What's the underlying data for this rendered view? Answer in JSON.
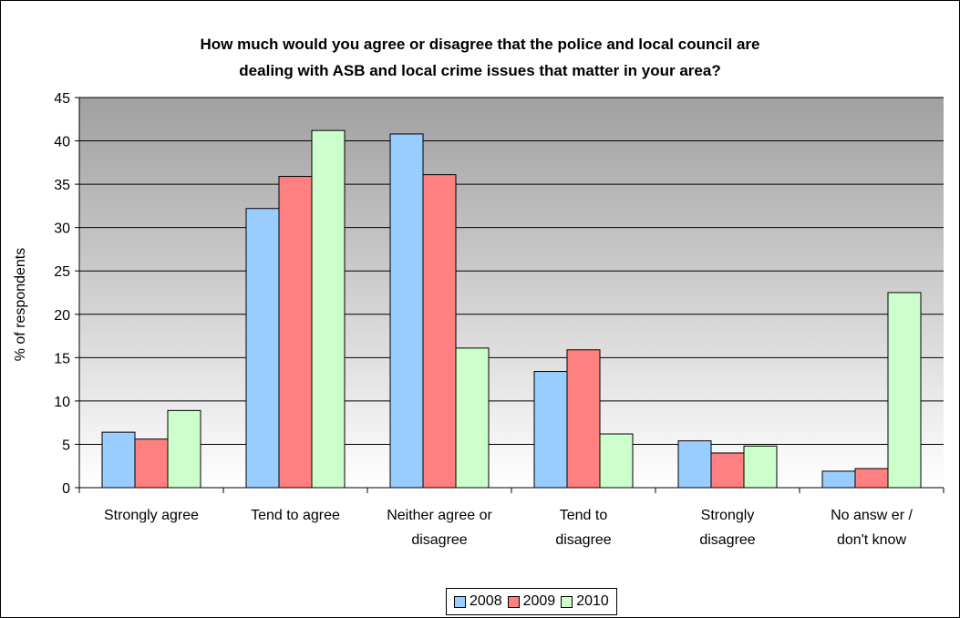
{
  "chart_data": {
    "type": "bar",
    "title_line1": "How much would you agree or disagree that the police and local council are",
    "title_line2": "dealing with ASB and local crime issues that matter in your area?",
    "ylabel": "% of respondents",
    "xlabel": "",
    "ylim": [
      0,
      45
    ],
    "yticks": [
      "0",
      "5",
      "10",
      "15",
      "20",
      "25",
      "30",
      "35",
      "40",
      "45"
    ],
    "grid": true,
    "legend_position": "bottom",
    "categories": [
      [
        "Strongly agree"
      ],
      [
        "Tend to agree"
      ],
      [
        "Neither agree or",
        "disagree"
      ],
      [
        "Tend to",
        "disagree"
      ],
      [
        "Strongly",
        "disagree"
      ],
      [
        "No answ er /",
        "don't know"
      ]
    ],
    "series": [
      {
        "name": "2008",
        "color": "#99ccff",
        "values": [
          6.4,
          32.2,
          40.8,
          13.4,
          5.4,
          1.9
        ]
      },
      {
        "name": "2009",
        "color": "#ff8080",
        "values": [
          5.6,
          35.9,
          36.1,
          15.9,
          4.0,
          2.2
        ]
      },
      {
        "name": "2010",
        "color": "#ccffcc",
        "values": [
          8.9,
          41.2,
          16.1,
          6.2,
          4.8,
          22.5
        ]
      }
    ]
  }
}
